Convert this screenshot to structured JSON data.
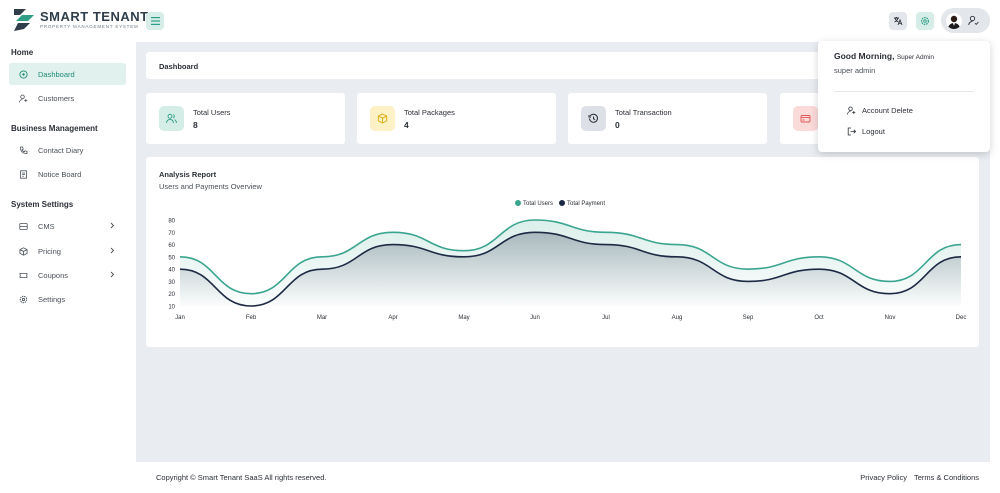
{
  "brand": {
    "name": "SMART TENANT",
    "tagline": "PROPERTY MANAGEMENT SYSTEM",
    "colors": {
      "primary": "#2f9e86",
      "dark": "#1d2a44"
    }
  },
  "header": {
    "icons": [
      "menu-icon",
      "translate-icon",
      "gear-icon",
      "avatar",
      "user-switch-icon"
    ]
  },
  "sidebar": {
    "sections": [
      {
        "title": "Home",
        "items": [
          {
            "label": "Dashboard",
            "icon": "dashboard-icon",
            "active": true
          },
          {
            "label": "Customers",
            "icon": "add-user-icon"
          }
        ]
      },
      {
        "title": "Business Management",
        "items": [
          {
            "label": "Contact Diary",
            "icon": "phone-icon"
          },
          {
            "label": "Notice Board",
            "icon": "notice-icon"
          }
        ]
      },
      {
        "title": "System Settings",
        "items": [
          {
            "label": "CMS",
            "icon": "cms-icon",
            "submenu": true
          },
          {
            "label": "Pricing",
            "icon": "package-icon",
            "submenu": true
          },
          {
            "label": "Coupons",
            "icon": "coupon-icon",
            "submenu": true
          },
          {
            "label": "Settings",
            "icon": "settings-icon"
          }
        ]
      }
    ]
  },
  "breadcrumb": "Dashboard",
  "stats": [
    {
      "label": "Total Users",
      "value": "8",
      "icon": "users-icon",
      "color": "#d5ede7"
    },
    {
      "label": "Total Packages",
      "value": "4",
      "icon": "box-icon",
      "color": "#fdf1c6"
    },
    {
      "label": "Total Transaction",
      "value": "0",
      "icon": "history-icon",
      "color": "#dde1e7"
    },
    {
      "label": "",
      "value": "",
      "icon": "card-icon",
      "color": "#fbdada"
    }
  ],
  "chart": {
    "title": "Analysis Report",
    "subtitle": "Users and Payments Overview"
  },
  "chart_data": {
    "type": "area",
    "categories": [
      "Jan",
      "Feb",
      "Mar",
      "Apr",
      "May",
      "Jun",
      "Jul",
      "Aug",
      "Sep",
      "Oct",
      "Nov",
      "Dec"
    ],
    "series": [
      {
        "name": "Total Users",
        "values": [
          50,
          20,
          50,
          70,
          55,
          80,
          70,
          60,
          40,
          50,
          30,
          60
        ],
        "color": "#3aa58f"
      },
      {
        "name": "Total Payment",
        "values": [
          40,
          10,
          40,
          60,
          50,
          70,
          60,
          50,
          30,
          40,
          20,
          50
        ],
        "color": "#1d2a44"
      }
    ],
    "yticks": [
      10,
      20,
      30,
      40,
      50,
      60,
      70,
      80
    ],
    "ylim": [
      10,
      80
    ],
    "legend": "top-center"
  },
  "footer": {
    "copyright": "Copyright © Smart Tenant SaaS All rights reserved.",
    "privacy": "Privacy Policy",
    "terms": "Terms & Conditions"
  },
  "profile_menu": {
    "greeting": "Good Morning,",
    "role": "Super Admin",
    "username": "super admin",
    "items": [
      {
        "label": "Account Delete",
        "icon": "user-delete-icon"
      },
      {
        "label": "Logout",
        "icon": "logout-icon"
      }
    ]
  }
}
